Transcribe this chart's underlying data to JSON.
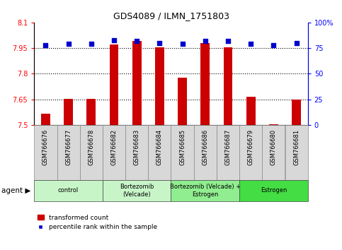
{
  "title": "GDS4089 / ILMN_1751803",
  "samples": [
    "GSM766676",
    "GSM766677",
    "GSM766678",
    "GSM766682",
    "GSM766683",
    "GSM766684",
    "GSM766685",
    "GSM766686",
    "GSM766687",
    "GSM766679",
    "GSM766680",
    "GSM766681"
  ],
  "transformed_count": [
    7.565,
    7.655,
    7.651,
    7.972,
    7.99,
    7.955,
    7.775,
    7.978,
    7.953,
    7.665,
    7.505,
    7.65
  ],
  "percentile_rank": [
    78,
    79,
    79,
    83,
    82,
    80,
    79,
    82,
    82,
    79,
    78,
    80
  ],
  "groups": [
    {
      "label": "control",
      "start": 0,
      "end": 3,
      "color": "#c8f5c8"
    },
    {
      "label": "Bortezomib\n(Velcade)",
      "start": 3,
      "end": 6,
      "color": "#c8f5c8"
    },
    {
      "label": "Bortezomib (Velcade) +\nEstrogen",
      "start": 6,
      "end": 9,
      "color": "#90EE90"
    },
    {
      "label": "Estrogen",
      "start": 9,
      "end": 12,
      "color": "#44dd44"
    }
  ],
  "ylim_left": [
    7.5,
    8.1
  ],
  "ylim_right": [
    0,
    100
  ],
  "yticks_left": [
    7.5,
    7.65,
    7.8,
    7.95,
    8.1
  ],
  "yticks_right": [
    0,
    25,
    50,
    75,
    100
  ],
  "bar_color": "#CC0000",
  "dot_color": "#0000CC",
  "bar_width": 0.4,
  "legend_bar_label": "transformed count",
  "legend_dot_label": "percentile rank within the sample",
  "agent_label": "agent",
  "sample_box_color": "#d8d8d8",
  "gridline_ticks": [
    7.65,
    7.8,
    7.95
  ]
}
